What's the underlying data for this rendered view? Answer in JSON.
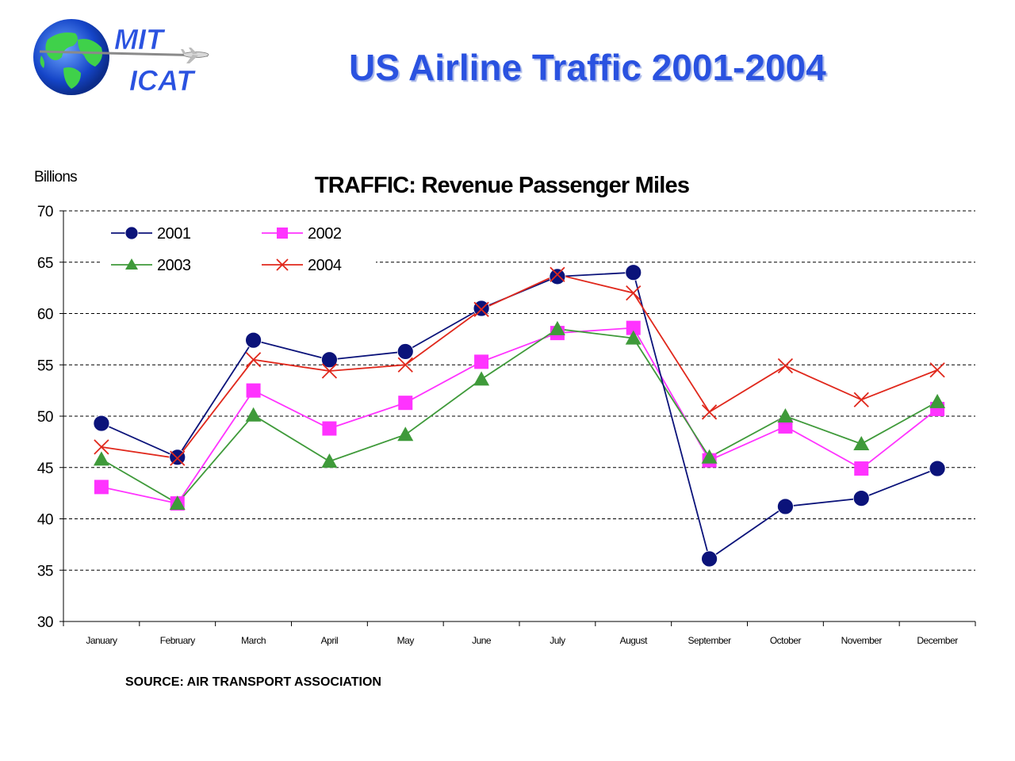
{
  "header": {
    "logo_text_line1": "MIT",
    "logo_text_line2": "ICAT",
    "title": "US Airline Traffic 2001-2004"
  },
  "footer": {
    "source": "SOURCE: AIR TRANSPORT ASSOCIATION"
  },
  "colors": {
    "title": "#2a52e0",
    "series_2001": "#0b137a",
    "series_2002": "#ff33ff",
    "series_2003": "#3f9a3a",
    "series_2004": "#e0281c"
  },
  "chart_data": {
    "type": "line",
    "title": "TRAFFIC: Revenue Passenger Miles",
    "ylabel": "Billions",
    "xlabel": "",
    "ylim": [
      30,
      70
    ],
    "yticks": [
      30,
      35,
      40,
      45,
      50,
      55,
      60,
      65,
      70
    ],
    "grid": "horizontal dashed",
    "legend_position": "top-left",
    "categories": [
      "January",
      "February",
      "March",
      "April",
      "May",
      "June",
      "July",
      "August",
      "September",
      "October",
      "November",
      "December"
    ],
    "series": [
      {
        "name": "2001",
        "marker": "circle",
        "color": "#0b137a",
        "values": [
          49.3,
          46.0,
          57.4,
          55.5,
          56.3,
          60.5,
          63.6,
          64.0,
          36.1,
          41.2,
          42.0,
          44.9
        ]
      },
      {
        "name": "2002",
        "marker": "square",
        "color": "#ff33ff",
        "values": [
          43.1,
          41.5,
          52.5,
          48.8,
          51.3,
          55.3,
          58.1,
          58.6,
          45.7,
          49.0,
          44.9,
          50.7
        ]
      },
      {
        "name": "2003",
        "marker": "triangle",
        "color": "#3f9a3a",
        "values": [
          45.8,
          41.5,
          50.1,
          45.6,
          48.2,
          53.6,
          58.5,
          57.6,
          46.0,
          50.0,
          47.3,
          51.4
        ]
      },
      {
        "name": "2004",
        "marker": "x",
        "color": "#e0281c",
        "values": [
          47.0,
          45.9,
          55.5,
          54.4,
          55.0,
          60.4,
          63.8,
          62.0,
          50.4,
          54.9,
          51.6,
          54.5
        ]
      }
    ]
  }
}
